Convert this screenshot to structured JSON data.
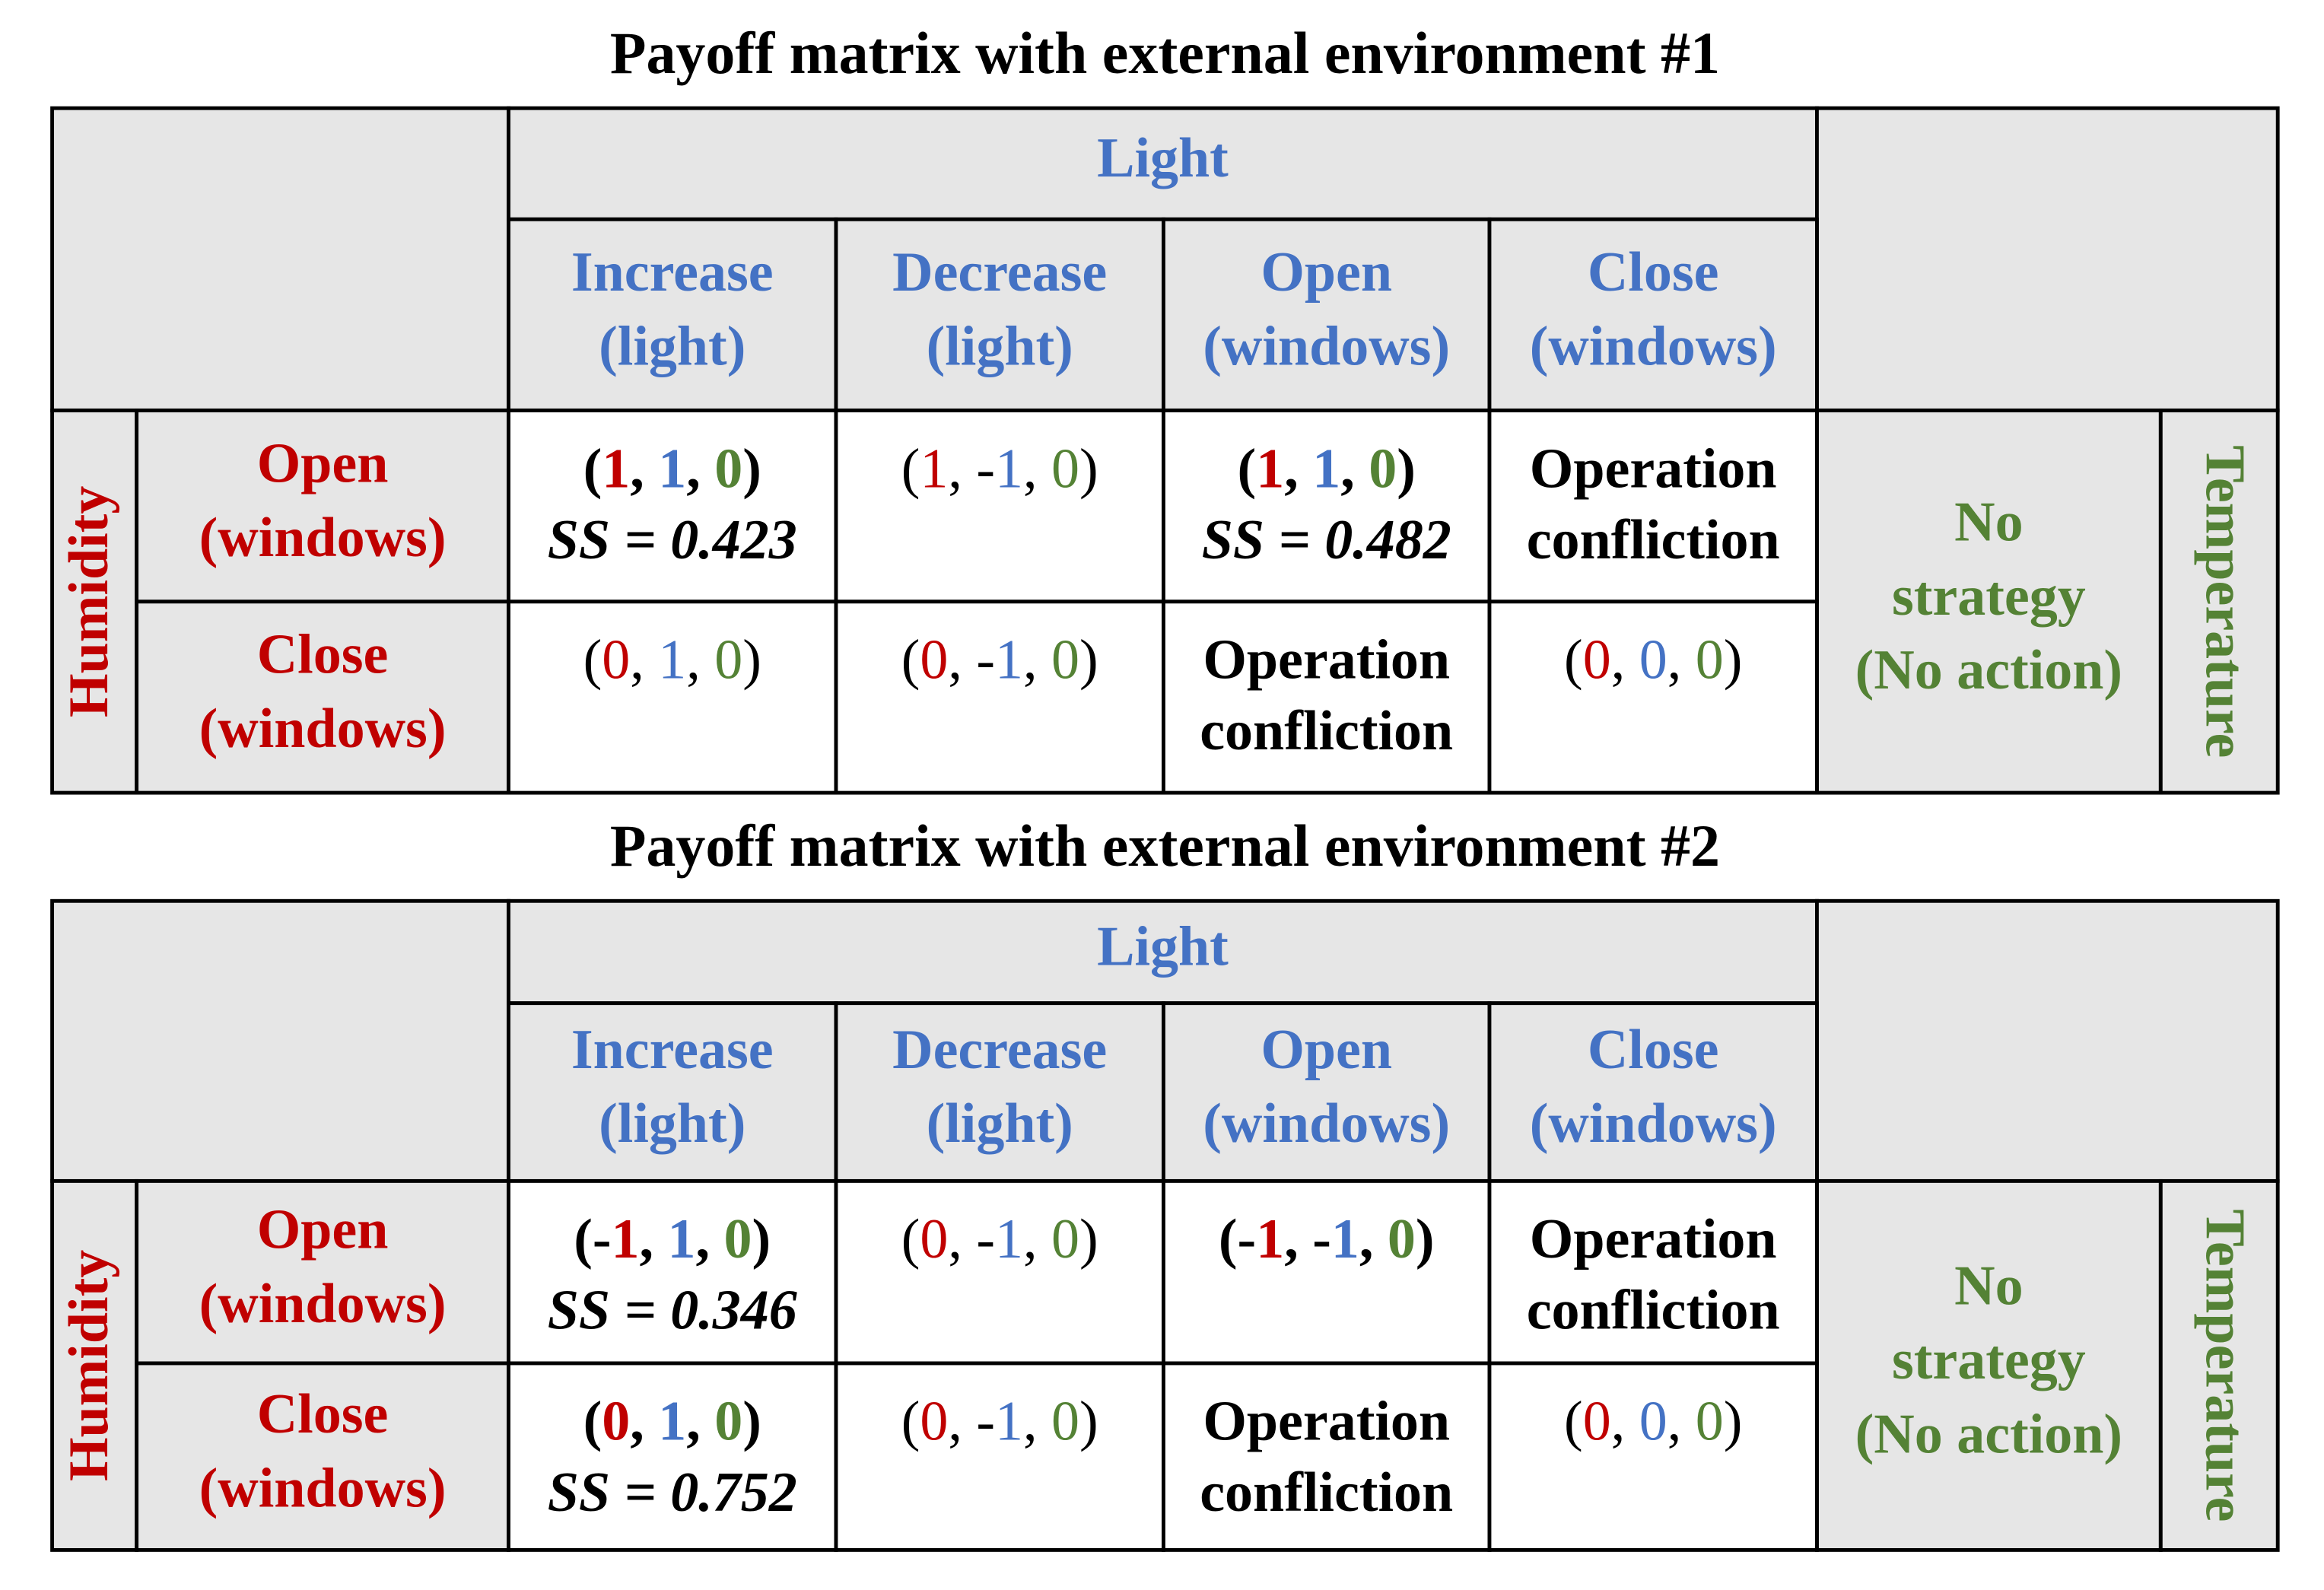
{
  "matrices": [
    {
      "title": "Payoff matrix with external environment #1",
      "column_group": "Light",
      "columns": [
        [
          "Increase",
          "(light)"
        ],
        [
          "Decrease",
          "(light)"
        ],
        [
          "Open",
          "(windows)"
        ],
        [
          "Close",
          "(windows)"
        ]
      ],
      "row_group": "Humidity",
      "rows": [
        [
          "Open",
          "(windows)"
        ],
        [
          "Close",
          "(windows)"
        ]
      ],
      "side_label": [
        "No",
        "strategy",
        "(No action)"
      ],
      "side_group": "Temperature",
      "cells": [
        [
          {
            "payoff": "(1, 1, 0)",
            "bold": true,
            "ss": "SS = 0.423"
          },
          {
            "payoff": "(1, -1, 0)"
          },
          {
            "payoff": "(1, 1, 0)",
            "bold": true,
            "ss": "SS = 0.482"
          },
          {
            "text": [
              "Operation",
              "confliction"
            ]
          }
        ],
        [
          {
            "payoff": "(0, 1, 0)"
          },
          {
            "payoff": "(0, -1, 0)"
          },
          {
            "text": [
              "Operation",
              "confliction"
            ]
          },
          {
            "payoff": "(0, 0, 0)"
          }
        ]
      ]
    },
    {
      "title": "Payoff matrix with external environment #2",
      "column_group": "Light",
      "columns": [
        [
          "Increase",
          "(light)"
        ],
        [
          "Decrease",
          "(light)"
        ],
        [
          "Open",
          "(windows)"
        ],
        [
          "Close",
          "(windows)"
        ]
      ],
      "row_group": "Humidity",
      "rows": [
        [
          "Open",
          "(windows)"
        ],
        [
          "Close",
          "(windows)"
        ]
      ],
      "side_label": [
        "No",
        "strategy",
        "(No action)"
      ],
      "side_group": "Temperature",
      "cells": [
        [
          {
            "payoff": "(-1, 1, 0)",
            "bold": true,
            "ss": "SS = 0.346"
          },
          {
            "payoff": "(0, -1, 0)"
          },
          {
            "payoff": "(-1, -1, 0)",
            "bold": true
          },
          {
            "text": [
              "Operation",
              "confliction"
            ]
          }
        ],
        [
          {
            "payoff": "(0, 1, 0)",
            "bold": true,
            "ss": "SS = 0.752"
          },
          {
            "payoff": "(0, -1, 0)"
          },
          {
            "text": [
              "Operation",
              "confliction"
            ]
          },
          {
            "payoff": "(0, 0, 0)"
          }
        ]
      ]
    }
  ]
}
